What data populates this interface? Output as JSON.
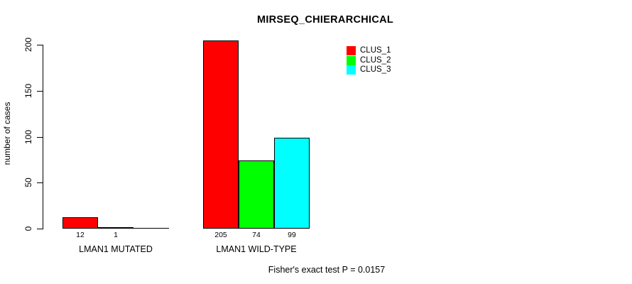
{
  "chart_data": {
    "type": "bar",
    "title": "MIRSEQ_CHIERARCHICAL",
    "xlabel": "",
    "ylabel": "number of cases",
    "ylim": [
      0,
      200
    ],
    "yticks": [
      0,
      50,
      100,
      150,
      200
    ],
    "grid": false,
    "legend": {
      "position": "top-right",
      "entries": [
        {
          "label": "CLUS_1",
          "color": "#ff0000"
        },
        {
          "label": "CLUS_2",
          "color": "#00ff00"
        },
        {
          "label": "CLUS_3",
          "color": "#00ffff"
        }
      ]
    },
    "groups": [
      {
        "label": "LMAN1 MUTATED",
        "bars": [
          {
            "series": "CLUS_1",
            "value": 12,
            "value_label": "12",
            "color": "#ff0000"
          },
          {
            "series": "CLUS_2",
            "value": 1,
            "value_label": "1",
            "color": "#00ff00"
          },
          {
            "series": "CLUS_3",
            "value": 0,
            "value_label": "",
            "color": "#00ffff"
          }
        ]
      },
      {
        "label": "LMAN1 WILD-TYPE",
        "bars": [
          {
            "series": "CLUS_1",
            "value": 205,
            "value_label": "205",
            "color": "#ff0000"
          },
          {
            "series": "CLUS_2",
            "value": 74,
            "value_label": "74",
            "color": "#00ff00"
          },
          {
            "series": "CLUS_3",
            "value": 99,
            "value_label": "99",
            "color": "#00ffff"
          }
        ]
      }
    ],
    "annotation": "Fisher's exact test P = 0.0157"
  }
}
